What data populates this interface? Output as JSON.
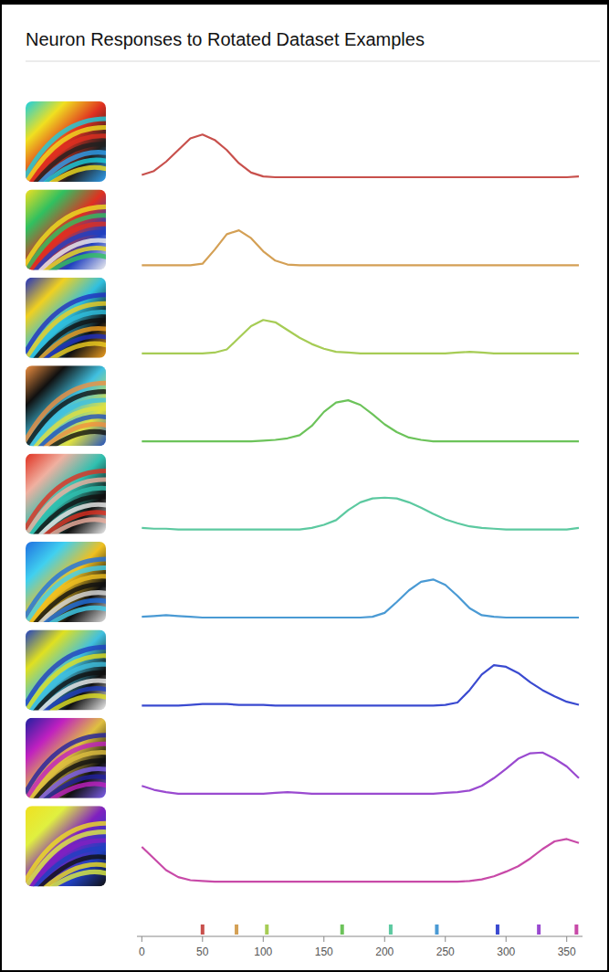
{
  "chart_data": {
    "type": "line",
    "title": "Neuron Responses to Rotated Dataset Examples",
    "x": [
      0,
      10,
      20,
      30,
      40,
      50,
      60,
      70,
      80,
      90,
      100,
      110,
      120,
      130,
      140,
      150,
      160,
      170,
      180,
      190,
      200,
      210,
      220,
      230,
      240,
      250,
      260,
      270,
      280,
      290,
      300,
      310,
      320,
      330,
      340,
      350,
      360
    ],
    "xlim": [
      -4,
      363
    ],
    "xticks": [
      0,
      50,
      100,
      150,
      200,
      250,
      300,
      350
    ],
    "ylim": [
      0,
      1
    ],
    "tick_labels": "x",
    "grid": false,
    "series": [
      {
        "color": "#c8504c",
        "peak_angle": 50,
        "values": [
          0.03,
          0.08,
          0.2,
          0.35,
          0.5,
          0.55,
          0.48,
          0.35,
          0.18,
          0.06,
          0.01,
          0,
          0,
          0,
          0,
          0,
          0,
          0,
          0,
          0,
          0,
          0,
          0,
          0,
          0,
          0,
          0,
          0,
          0,
          0,
          0,
          0,
          0,
          0,
          0,
          0,
          0.01
        ]
      },
      {
        "color": "#d4a055",
        "peak_angle": 78,
        "values": [
          0,
          0,
          0,
          0,
          0,
          0.02,
          0.2,
          0.4,
          0.45,
          0.35,
          0.18,
          0.06,
          0.01,
          0,
          0,
          0,
          0,
          0,
          0,
          0,
          0,
          0,
          0,
          0,
          0,
          0,
          0,
          0,
          0,
          0,
          0,
          0,
          0,
          0,
          0,
          0,
          0
        ]
      },
      {
        "color": "#a6cc55",
        "peak_angle": 103,
        "values": [
          0,
          0,
          0,
          0,
          0,
          0,
          0.01,
          0.05,
          0.2,
          0.35,
          0.43,
          0.4,
          0.3,
          0.2,
          0.12,
          0.06,
          0.02,
          0.01,
          0,
          0,
          0,
          0,
          0,
          0,
          0,
          0,
          0.01,
          0.02,
          0.01,
          0,
          0,
          0,
          0,
          0,
          0,
          0,
          0
        ]
      },
      {
        "color": "#6cc35a",
        "peak_angle": 165,
        "values": [
          0,
          0,
          0,
          0,
          0,
          0,
          0,
          0,
          0,
          0,
          0.01,
          0.02,
          0.04,
          0.08,
          0.2,
          0.38,
          0.5,
          0.53,
          0.47,
          0.35,
          0.22,
          0.12,
          0.05,
          0.02,
          0,
          0,
          0,
          0,
          0,
          0,
          0,
          0,
          0,
          0,
          0,
          0,
          0
        ]
      },
      {
        "color": "#5cc9a0",
        "peak_angle": 205,
        "values": [
          0.02,
          0.01,
          0.01,
          0,
          0,
          0,
          0,
          0,
          0,
          0,
          0,
          0,
          0,
          0,
          0.02,
          0.06,
          0.12,
          0.25,
          0.35,
          0.4,
          0.41,
          0.4,
          0.35,
          0.28,
          0.2,
          0.13,
          0.08,
          0.04,
          0.02,
          0.01,
          0,
          0,
          0,
          0,
          0,
          0,
          0.02
        ]
      },
      {
        "color": "#4a9ad4",
        "peak_angle": 243,
        "values": [
          0.01,
          0.02,
          0.03,
          0.02,
          0.01,
          0,
          0,
          0,
          0,
          0,
          0,
          0,
          0,
          0,
          0,
          0,
          0,
          0,
          0,
          0.01,
          0.06,
          0.2,
          0.35,
          0.46,
          0.49,
          0.42,
          0.28,
          0.12,
          0.03,
          0.01,
          0,
          0,
          0,
          0,
          0,
          0,
          0
        ]
      },
      {
        "color": "#3a4ad0",
        "peak_angle": 293,
        "values": [
          0,
          0,
          0,
          0,
          0.01,
          0.02,
          0.02,
          0.02,
          0.01,
          0.01,
          0.01,
          0,
          0,
          0,
          0,
          0,
          0,
          0,
          0,
          0,
          0,
          0,
          0,
          0,
          0,
          0.01,
          0.04,
          0.2,
          0.4,
          0.52,
          0.5,
          0.42,
          0.3,
          0.2,
          0.12,
          0.05,
          0.01
        ]
      },
      {
        "color": "#9a4ad0",
        "peak_angle": 327,
        "values": [
          0.1,
          0.05,
          0.02,
          0,
          0,
          0,
          0,
          0,
          0,
          0,
          0,
          0.01,
          0.02,
          0.01,
          0,
          0,
          0,
          0,
          0,
          0,
          0,
          0,
          0,
          0,
          0,
          0.01,
          0.02,
          0.04,
          0.1,
          0.2,
          0.32,
          0.45,
          0.52,
          0.53,
          0.45,
          0.35,
          0.2
        ]
      },
      {
        "color": "#c84aa8",
        "peak_angle": 358,
        "values": [
          0.45,
          0.3,
          0.15,
          0.06,
          0.02,
          0.01,
          0,
          0,
          0,
          0,
          0,
          0,
          0,
          0,
          0,
          0,
          0,
          0,
          0,
          0,
          0,
          0,
          0,
          0,
          0,
          0,
          0,
          0.01,
          0.03,
          0.07,
          0.13,
          0.2,
          0.3,
          0.42,
          0.52,
          0.55,
          0.5
        ]
      }
    ]
  }
}
